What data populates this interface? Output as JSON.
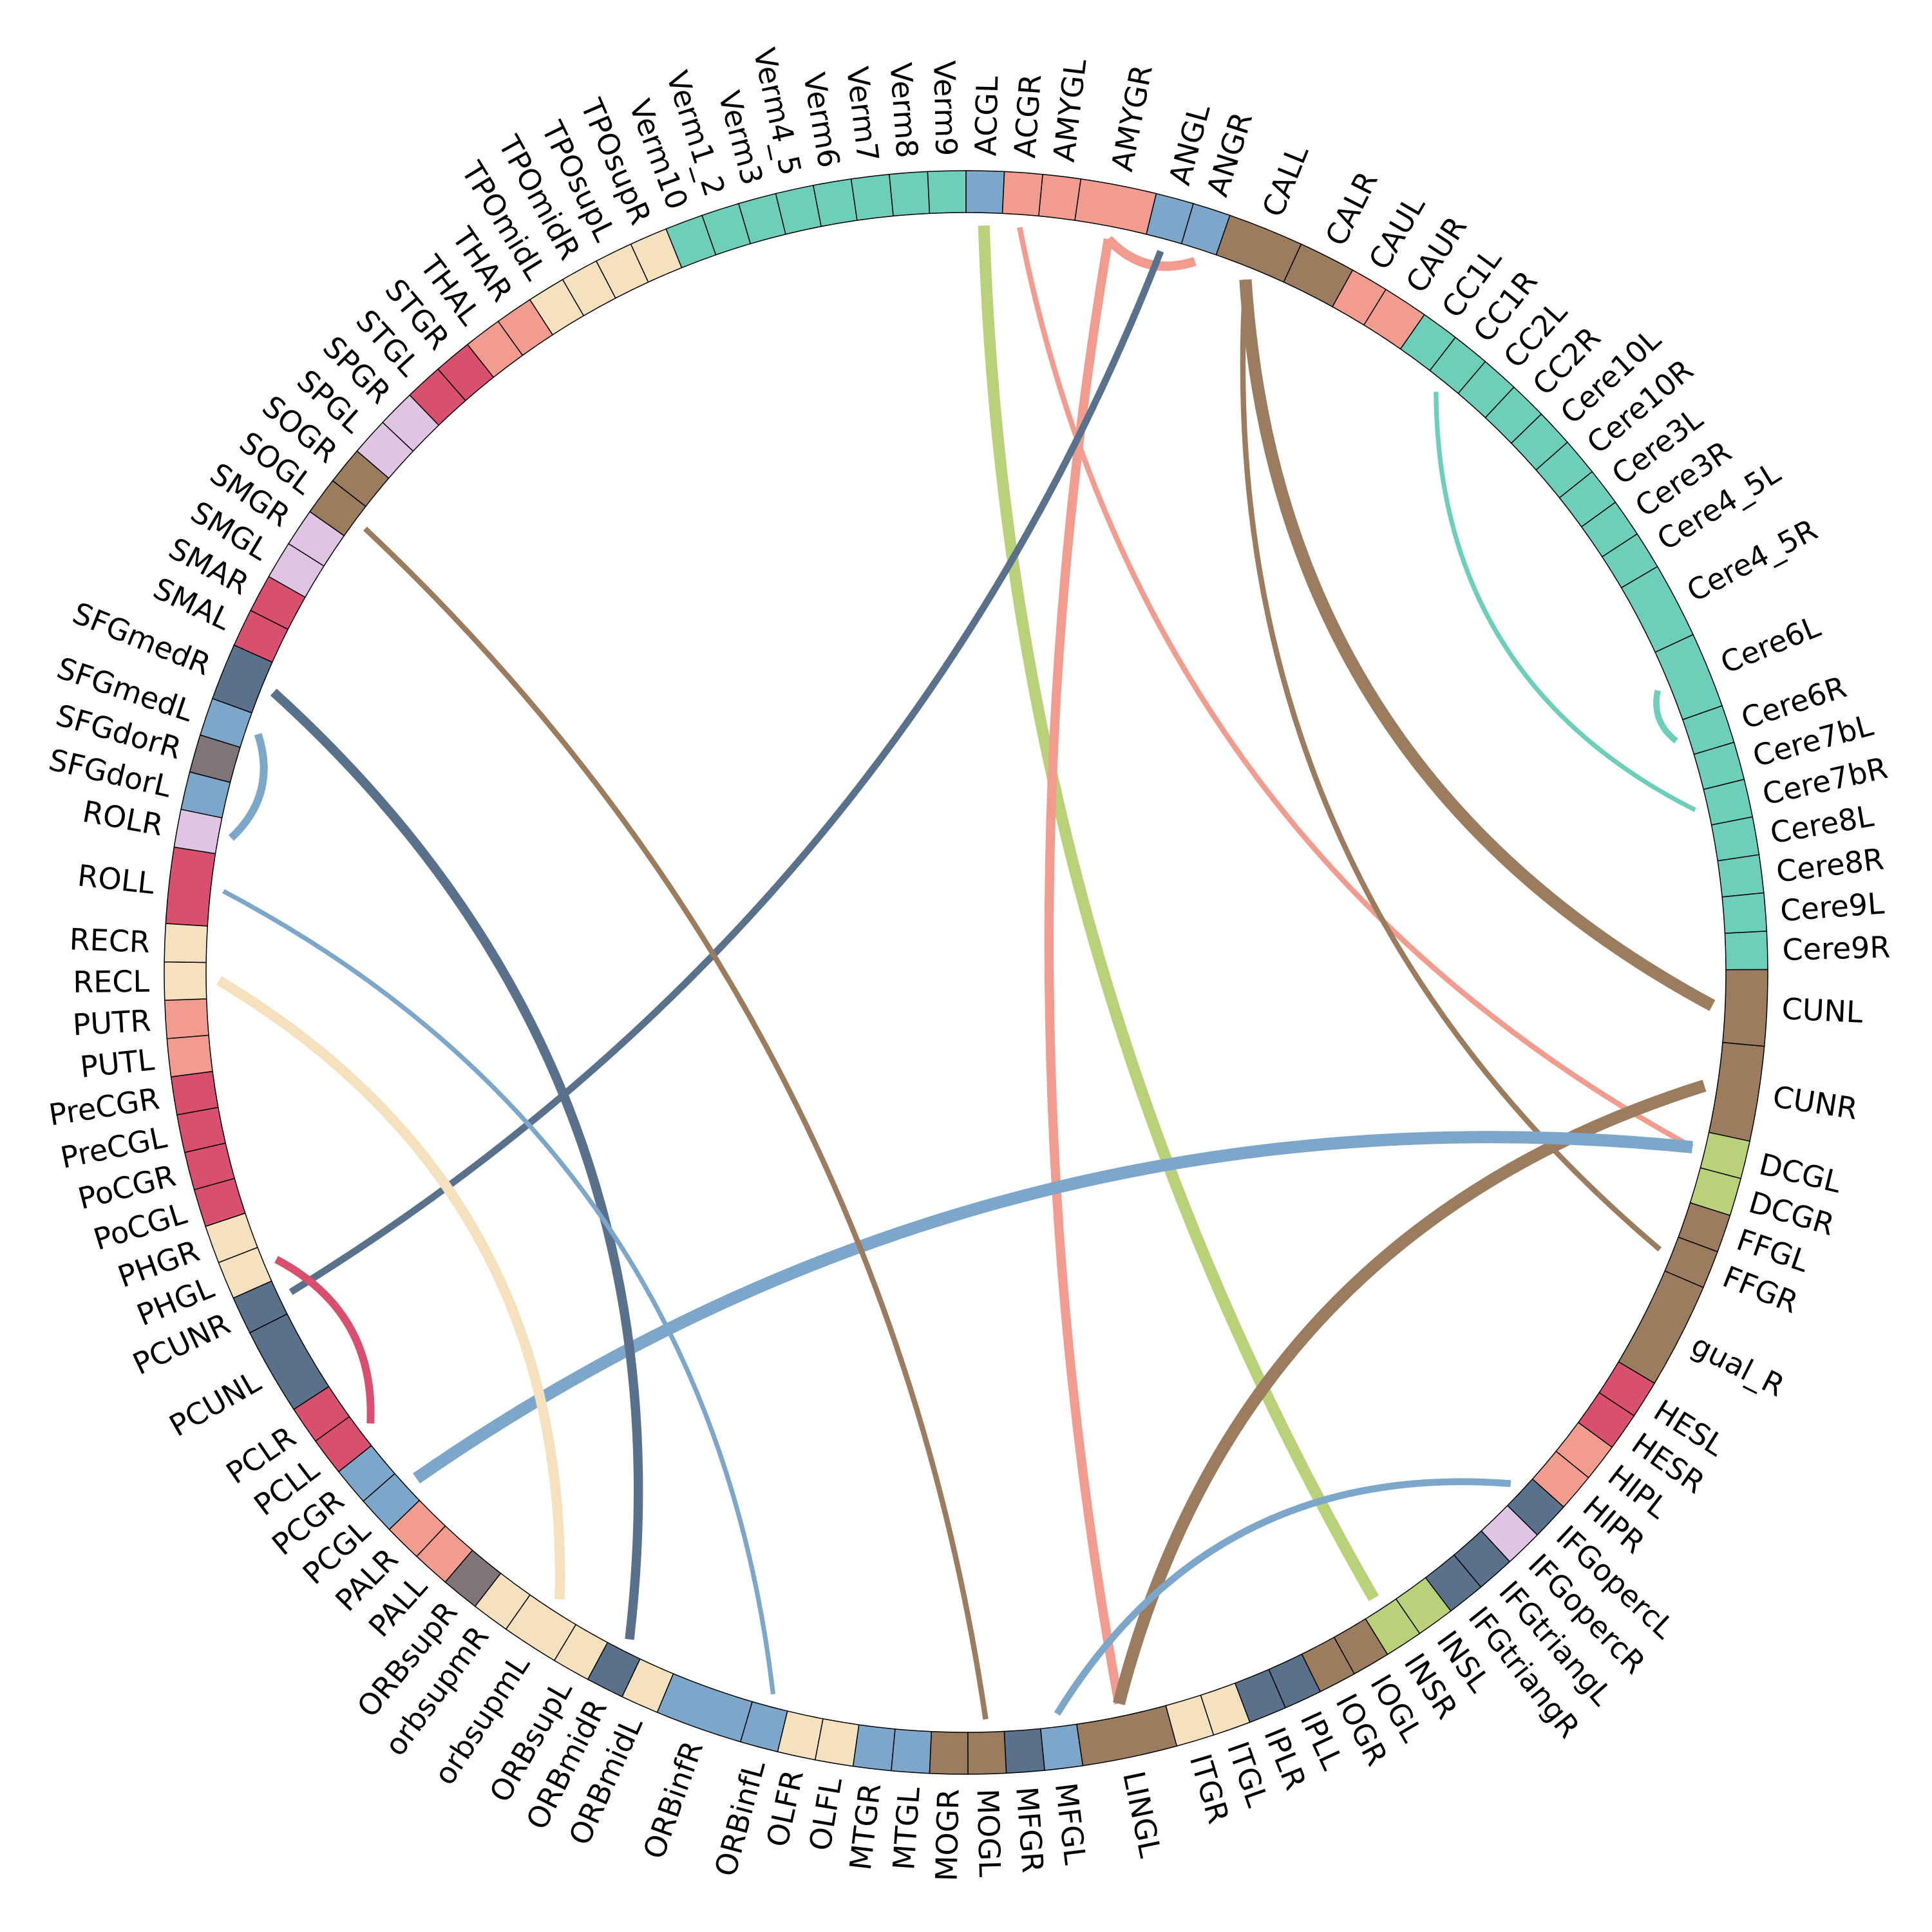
{
  "segments": [
    {
      "label": "ACGL",
      "color": "#7da7ca",
      "size": 1
    },
    {
      "label": "ACGR",
      "color": "#f29b8f",
      "size": 1
    },
    {
      "label": "AMYGL",
      "color": "#f29b8f",
      "size": 1
    },
    {
      "label": "AMYGR",
      "color": "#f29b8f",
      "size": 2
    },
    {
      "label": "ANGL",
      "color": "#7da7ca",
      "size": 1
    },
    {
      "label": "ANGR",
      "color": "#7da7ca",
      "size": 1
    },
    {
      "label": "CALL",
      "color": "#9c7c5e",
      "size": 2
    },
    {
      "label": "CALR",
      "color": "#9c7c5e",
      "size": 1.5
    },
    {
      "label": "CAUL",
      "color": "#f29b8f",
      "size": 1
    },
    {
      "label": "CAUR",
      "color": "#f29b8f",
      "size": 1.2
    },
    {
      "label": "CC1L",
      "color": "#6dcfba",
      "size": 1
    },
    {
      "label": "CC1R",
      "color": "#6dcfba",
      "size": 1
    },
    {
      "label": "CC2L",
      "color": "#6dcfba",
      "size": 1
    },
    {
      "label": "CC2R",
      "color": "#6dcfba",
      "size": 1
    },
    {
      "label": "Cere10L",
      "color": "#6dcfba",
      "size": 1
    },
    {
      "label": "Cere10R",
      "color": "#6dcfba",
      "size": 1
    },
    {
      "label": "Cere3L",
      "color": "#6dcfba",
      "size": 1
    },
    {
      "label": "Cere3R",
      "color": "#6dcfba",
      "size": 1
    },
    {
      "label": "Cere4_5L",
      "color": "#6dcfba",
      "size": 1
    },
    {
      "label": "Cere4_5R",
      "color": "#6dcfba",
      "size": 2
    },
    {
      "label": "Cere6L",
      "color": "#6dcfba",
      "size": 2
    },
    {
      "label": "Cere6R",
      "color": "#6dcfba",
      "size": 1
    },
    {
      "label": "Cere7bL",
      "color": "#6dcfba",
      "size": 1
    },
    {
      "label": "Cere7bR",
      "color": "#6dcfba",
      "size": 1
    },
    {
      "label": "Cere8L",
      "color": "#6dcfba",
      "size": 1
    },
    {
      "label": "Cere8R",
      "color": "#6dcfba",
      "size": 1
    },
    {
      "label": "Cere9L",
      "color": "#6dcfba",
      "size": 1
    },
    {
      "label": "Cere9R",
      "color": "#6dcfba",
      "size": 1
    },
    {
      "label": "CUNL",
      "color": "#9c7c5e",
      "size": 2
    },
    {
      "label": "CUNR",
      "color": "#9c7c5e",
      "size": 2.5
    },
    {
      "label": "DCGL",
      "color": "#b9d179",
      "size": 1
    },
    {
      "label": "DCGR",
      "color": "#b9d179",
      "size": 1
    },
    {
      "label": "FFGL",
      "color": "#9c7c5e",
      "size": 1
    },
    {
      "label": "FFGR",
      "color": "#9c7c5e",
      "size": 1
    },
    {
      "label": "gual_R",
      "color": "#9c7c5e",
      "size": 2.8
    },
    {
      "label": "HESL",
      "color": "#d9506f",
      "size": 1
    },
    {
      "label": "HESR",
      "color": "#d9506f",
      "size": 1
    },
    {
      "label": "HIPL",
      "color": "#f29b8f",
      "size": 1
    },
    {
      "label": "HIPR",
      "color": "#f29b8f",
      "size": 1
    },
    {
      "label": "IFGopercL",
      "color": "#5a718b",
      "size": 1
    },
    {
      "label": "IFGopercR",
      "color": "#dfc5e3",
      "size": 1
    },
    {
      "label": "IFGtriangL",
      "color": "#5a718b",
      "size": 1
    },
    {
      "label": "IFGtriangR",
      "color": "#5a718b",
      "size": 1
    },
    {
      "label": "INSL",
      "color": "#b9d179",
      "size": 1
    },
    {
      "label": "INSR",
      "color": "#b9d179",
      "size": 1
    },
    {
      "label": "IOGL",
      "color": "#9c7c5e",
      "size": 1
    },
    {
      "label": "IOGR",
      "color": "#9c7c5e",
      "size": 1
    },
    {
      "label": "IPLL",
      "color": "#5a718b",
      "size": 1
    },
    {
      "label": "IPLR",
      "color": "#5a718b",
      "size": 1
    },
    {
      "label": "ITGL",
      "color": "#f5e1bd",
      "size": 1
    },
    {
      "label": "ITGR",
      "color": "#f5e1bd",
      "size": 1
    },
    {
      "label": "LINGL",
      "color": "#9c7c5e",
      "size": 2.5
    },
    {
      "label": "MFGL",
      "color": "#7da7ca",
      "size": 1
    },
    {
      "label": "MFGR",
      "color": "#5a718b",
      "size": 1
    },
    {
      "label": "MOGL",
      "color": "#9c7c5e",
      "size": 1
    },
    {
      "label": "MOGR",
      "color": "#9c7c5e",
      "size": 1
    },
    {
      "label": "MTGL",
      "color": "#7da7ca",
      "size": 1
    },
    {
      "label": "MTGR",
      "color": "#7da7ca",
      "size": 1
    },
    {
      "label": "OLFL",
      "color": "#f5e1bd",
      "size": 1
    },
    {
      "label": "OLFR",
      "color": "#f5e1bd",
      "size": 1
    },
    {
      "label": "ORBinfL",
      "color": "#7da7ca",
      "size": 1
    },
    {
      "label": "ORBinfR",
      "color": "#7da7ca",
      "size": 2.3
    },
    {
      "label": "ORBmidL",
      "color": "#f5e1bd",
      "size": 1
    },
    {
      "label": "ORBmidR",
      "color": "#5a718b",
      "size": 1
    },
    {
      "label": "ORBsupL",
      "color": "#f5e1bd",
      "size": 1
    },
    {
      "label": "orbsupmL",
      "color": "#f5e1bd",
      "size": 1.5
    },
    {
      "label": "orbsupmR",
      "color": "#f5e1bd",
      "size": 1
    },
    {
      "label": "ORBsupR",
      "color": "#7e747a",
      "size": 1
    },
    {
      "label": "PALL",
      "color": "#f29b8f",
      "size": 1
    },
    {
      "label": "PALR",
      "color": "#f29b8f",
      "size": 1
    },
    {
      "label": "PCGL",
      "color": "#7da7ca",
      "size": 1
    },
    {
      "label": "PCGR",
      "color": "#7da7ca",
      "size": 1
    },
    {
      "label": "PCLL",
      "color": "#d9506f",
      "size": 1
    },
    {
      "label": "PCLR",
      "color": "#d9506f",
      "size": 1
    },
    {
      "label": "PCUNL",
      "color": "#5a718b",
      "size": 2.3
    },
    {
      "label": "PCUNR",
      "color": "#5a718b",
      "size": 1
    },
    {
      "label": "PHGL",
      "color": "#f5e1bd",
      "size": 1
    },
    {
      "label": "PHGR",
      "color": "#f5e1bd",
      "size": 1
    },
    {
      "label": "PoCGL",
      "color": "#d9506f",
      "size": 1
    },
    {
      "label": "PoCGR",
      "color": "#d9506f",
      "size": 1
    },
    {
      "label": "PreCGL",
      "color": "#d9506f",
      "size": 1
    },
    {
      "label": "PreCGR",
      "color": "#d9506f",
      "size": 1
    },
    {
      "label": "PUTL",
      "color": "#f29b8f",
      "size": 1
    },
    {
      "label": "PUTR",
      "color": "#f29b8f",
      "size": 1
    },
    {
      "label": "RECL",
      "color": "#f5e1bd",
      "size": 1
    },
    {
      "label": "RECR",
      "color": "#f5e1bd",
      "size": 1
    },
    {
      "label": "ROLL",
      "color": "#d9506f",
      "size": 2
    },
    {
      "label": "ROLR",
      "color": "#dfc5e3",
      "size": 1
    },
    {
      "label": "SFGdorL",
      "color": "#7da7ca",
      "size": 1
    },
    {
      "label": "SFGdorR",
      "color": "#7e747a",
      "size": 1
    },
    {
      "label": "SFGmedL",
      "color": "#7da7ca",
      "size": 1
    },
    {
      "label": "SFGmedR",
      "color": "#5a718b",
      "size": 1.5
    },
    {
      "label": "SMAL",
      "color": "#d9506f",
      "size": 1
    },
    {
      "label": "SMAR",
      "color": "#d9506f",
      "size": 1
    },
    {
      "label": "SMGL",
      "color": "#dfc5e3",
      "size": 1
    },
    {
      "label": "SMGR",
      "color": "#dfc5e3",
      "size": 1
    },
    {
      "label": "SOGL",
      "color": "#9c7c5e",
      "size": 1
    },
    {
      "label": "SOGR",
      "color": "#9c7c5e",
      "size": 1
    },
    {
      "label": "SPGL",
      "color": "#dfc5e3",
      "size": 1
    },
    {
      "label": "SPGR",
      "color": "#dfc5e3",
      "size": 1
    },
    {
      "label": "STGL",
      "color": "#d9506f",
      "size": 1
    },
    {
      "label": "STGR",
      "color": "#d9506f",
      "size": 1
    },
    {
      "label": "THAL",
      "color": "#f29b8f",
      "size": 1
    },
    {
      "label": "THAR",
      "color": "#f29b8f",
      "size": 1
    },
    {
      "label": "TPOmidL",
      "color": "#f5e1bd",
      "size": 1
    },
    {
      "label": "TPOmidR",
      "color": "#f5e1bd",
      "size": 1
    },
    {
      "label": "TPOsupL",
      "color": "#f5e1bd",
      "size": 1
    },
    {
      "label": "TPOsupR",
      "color": "#f5e1bd",
      "size": 1
    },
    {
      "label": "Verm10",
      "color": "#6dcfba",
      "size": 1
    },
    {
      "label": "Verm1_2",
      "color": "#6dcfba",
      "size": 1
    },
    {
      "label": "Verm3",
      "color": "#6dcfba",
      "size": 1
    },
    {
      "label": "Verm4_5",
      "color": "#6dcfba",
      "size": 1
    },
    {
      "label": "Verm6",
      "color": "#6dcfba",
      "size": 1
    },
    {
      "label": "Verm7",
      "color": "#6dcfba",
      "size": 1
    },
    {
      "label": "Verm8",
      "color": "#6dcfba",
      "size": 1
    },
    {
      "label": "Verm9",
      "color": "#6dcfba",
      "size": 1
    }
  ],
  "links": [
    {
      "source": "ACGL",
      "target": "INSR",
      "color": "#b9d179",
      "weight": 3
    },
    {
      "source": "ACGR",
      "target": "DCGL",
      "color": "#f29b8f",
      "weight": 1.4
    },
    {
      "source": "AMYGR",
      "target": "LINGL",
      "color": "#f29b8f",
      "weight": 2.4
    },
    {
      "source": "AMYGR",
      "target": "ANGR",
      "color": "#f29b8f",
      "weight": 2.4
    },
    {
      "source": "ANGL",
      "target": "PCUNR",
      "color": "#5a718b",
      "weight": 1.8
    },
    {
      "source": "CALL",
      "target": "CUNL",
      "color": "#9c7c5e",
      "weight": 3.2
    },
    {
      "source": "CALL",
      "target": "FFGR",
      "color": "#9c7c5e",
      "weight": 1.4
    },
    {
      "source": "CC1R",
      "target": "Cere7bR",
      "color": "#6dcfba",
      "weight": 1.2
    },
    {
      "source": "Cere6L",
      "target": "Cere6R",
      "color": "#6dcfba",
      "weight": 1.6
    },
    {
      "source": "CUNR",
      "target": "LINGL",
      "color": "#9c7c5e",
      "weight": 3.2
    },
    {
      "source": "DCGL",
      "target": "PCGL",
      "color": "#7da7ca",
      "weight": 3.2
    },
    {
      "source": "MFGL",
      "target": "IFGopercL",
      "color": "#7da7ca",
      "weight": 1.8
    },
    {
      "source": "SOGL",
      "target": "MOGL",
      "color": "#9c7c5e",
      "weight": 1.4
    },
    {
      "source": "SFGmedR",
      "target": "ORBmidR",
      "color": "#5a718b",
      "weight": 2.4
    },
    {
      "source": "SFGmedL",
      "target": "ROLR",
      "color": "#7da7ca",
      "weight": 2
    },
    {
      "source": "ROLL",
      "target": "ORBinfL",
      "color": "#7da7ca",
      "weight": 1.2
    },
    {
      "source": "RECL",
      "target": "orbsupmL",
      "color": "#f5e1bd",
      "weight": 2.6
    },
    {
      "source": "PHGL",
      "target": "PCLL",
      "color": "#d9506f",
      "weight": 2
    }
  ]
}
